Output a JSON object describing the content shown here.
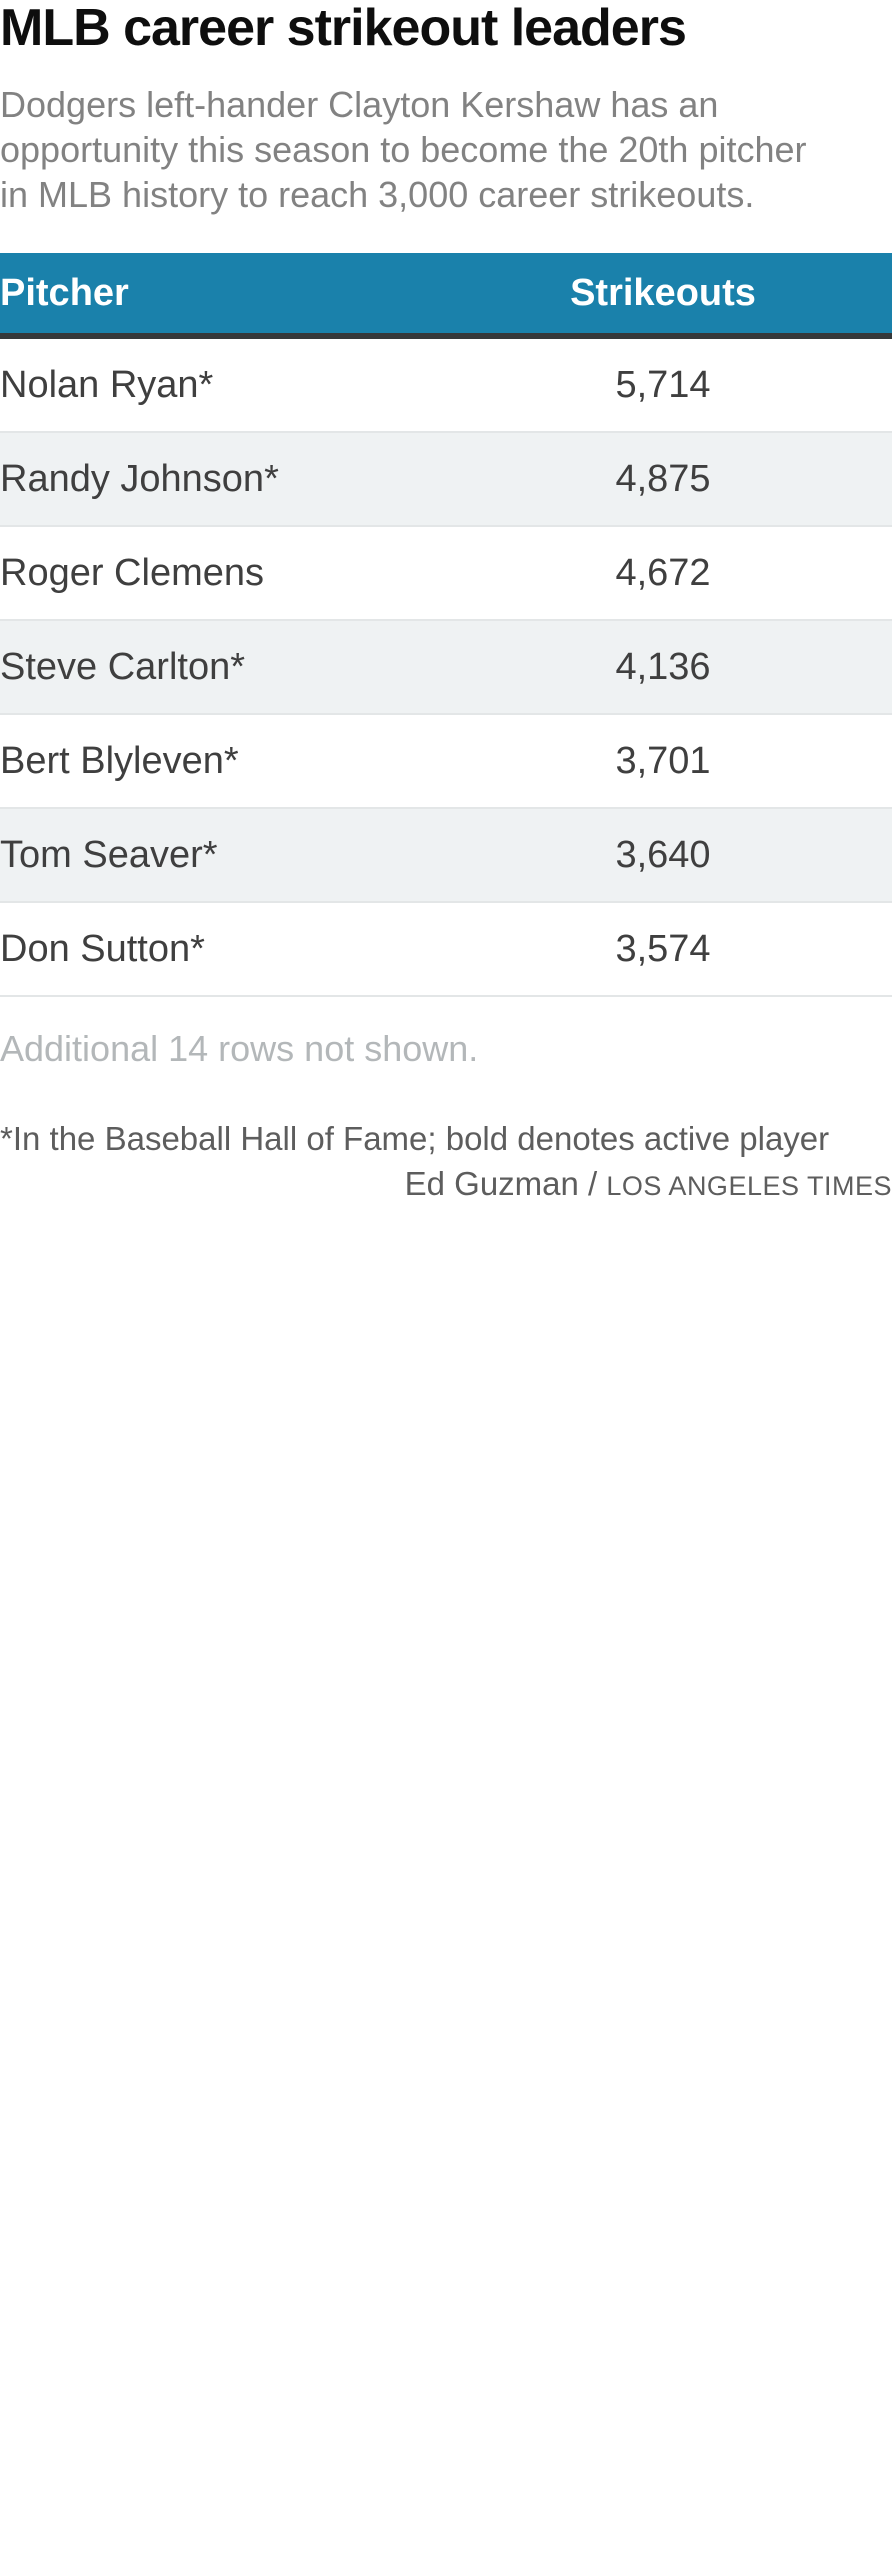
{
  "header": {
    "title": "MLB career strikeout leaders",
    "subtitle_lines": [
      "Dodgers left-hander Clayton Kershaw has an",
      "opportunity this season to become the 20th pitcher",
      "in MLB history to reach 3,000 career strikeouts."
    ]
  },
  "table": {
    "columns": {
      "pitcher": "Pitcher",
      "strikeouts": "Strikeouts"
    },
    "rows": [
      {
        "pitcher": "Nolan Ryan*",
        "strikeouts": "5,714"
      },
      {
        "pitcher": "Randy Johnson*",
        "strikeouts": "4,875"
      },
      {
        "pitcher": "Roger Clemens",
        "strikeouts": "4,672"
      },
      {
        "pitcher": "Steve Carlton*",
        "strikeouts": "4,136"
      },
      {
        "pitcher": "Bert Blyleven*",
        "strikeouts": "3,701"
      },
      {
        "pitcher": "Tom Seaver*",
        "strikeouts": "3,640"
      },
      {
        "pitcher": "Don Sutton*",
        "strikeouts": "3,574"
      }
    ]
  },
  "notes": {
    "truncation": "Additional 14 rows not shown.",
    "footnote": "*In the Baseball Hall of Fame; bold denotes active player",
    "credit_author": "Ed Guzman /",
    "credit_source": "LOS ANGELES TIMES"
  },
  "colors": {
    "header_bg": "#1a81ab",
    "header_text": "#ffffff",
    "header_rule": "#35383a",
    "row_alt_bg": "#eff2f3",
    "row_separator": "#e3e6e7",
    "body_text": "#3f3f3f",
    "subtitle_text": "#828282",
    "truncation_text": "#b3b7b9",
    "note_text": "#5d5d5d"
  },
  "chart_data": {
    "type": "table",
    "title": "MLB career strikeout leaders",
    "subtitle": "Dodgers left-hander Clayton Kershaw has an opportunity this season to become the 20th pitcher in MLB history to reach 3,000 career strikeouts.",
    "columns": [
      "Pitcher",
      "Strikeouts"
    ],
    "rows": [
      [
        "Nolan Ryan*",
        5714
      ],
      [
        "Randy Johnson*",
        4875
      ],
      [
        "Roger Clemens",
        4672
      ],
      [
        "Steve Carlton*",
        4136
      ],
      [
        "Bert Blyleven*",
        3701
      ],
      [
        "Tom Seaver*",
        3640
      ],
      [
        "Don Sutton*",
        3574
      ]
    ],
    "rows_not_shown": 14,
    "truncation_note": "Additional 14 rows not shown.",
    "footnote": "*In the Baseball Hall of Fame; bold denotes active player",
    "credit": "Ed Guzman / LOS ANGELES TIMES",
    "layout_hints": {
      "zebra_striping": true,
      "numeric_column_alignment": "center",
      "header_style": "teal background, white bold text, dark rule below"
    }
  }
}
